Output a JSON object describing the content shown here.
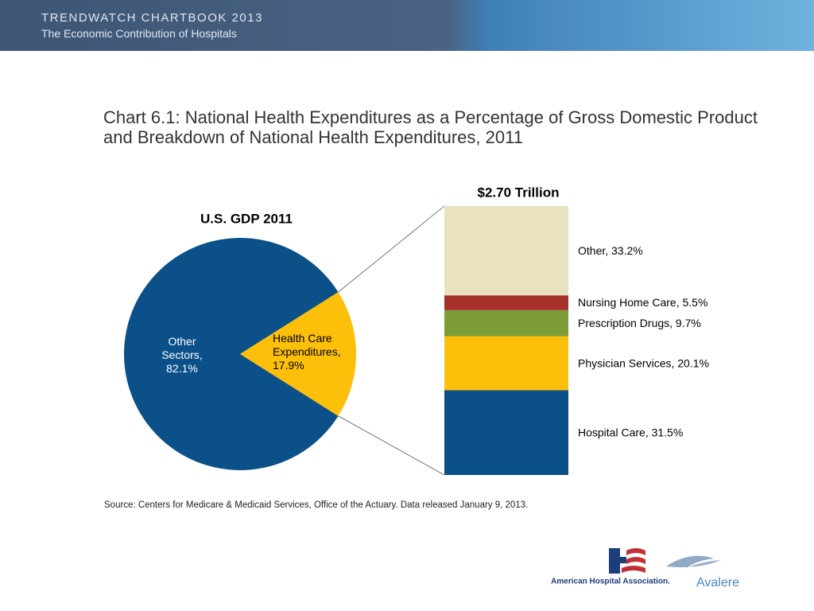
{
  "header": {
    "title": "TRENDWATCH CHARTBOOK 2013",
    "subtitle": "The Economic Contribution of Hospitals"
  },
  "title": "Chart 6.1: National Health Expenditures as a Percentage of Gross Domestic Product and Breakdown of National Health Expenditures, 2011",
  "chart_data": [
    {
      "type": "pie",
      "title": "U.S. GDP 2011",
      "values": [
        82.1,
        17.9
      ],
      "value_labels": [
        "Other Sectors, 82.1%",
        "Health Care Expenditures, 17.9%"
      ],
      "colors": [
        "#0b5088",
        "#fcbf0a"
      ]
    },
    {
      "type": "stacked_bar",
      "title": "$2.70 Trillion",
      "ylim": [
        0,
        100
      ],
      "series": [
        {
          "color": "#0b5088",
          "values": [
            31.5
          ],
          "value_labels": [
            "Hospital Care, 31.5%"
          ]
        },
        {
          "color": "#fcbf0a",
          "values": [
            20.1
          ],
          "value_labels": [
            "Physician Services, 20.1%"
          ]
        },
        {
          "color": "#7b9c37",
          "values": [
            9.7
          ],
          "value_labels": [
            "Prescription Drugs, 9.7%"
          ]
        },
        {
          "color": "#a6302a",
          "values": [
            5.5
          ],
          "value_labels": [
            "Nursing Home Care, 5.5%"
          ]
        },
        {
          "color": "#e8e2c0",
          "values": [
            33.2
          ],
          "value_labels": [
            "Other, 33.2%"
          ]
        }
      ]
    }
  ],
  "source": "Source: Centers for Medicare & Medicaid Services, Office of the Actuary.  Data released January 9, 2013.",
  "logos": {
    "aha": "American Hospital Association.",
    "avalere": "Avalere"
  }
}
